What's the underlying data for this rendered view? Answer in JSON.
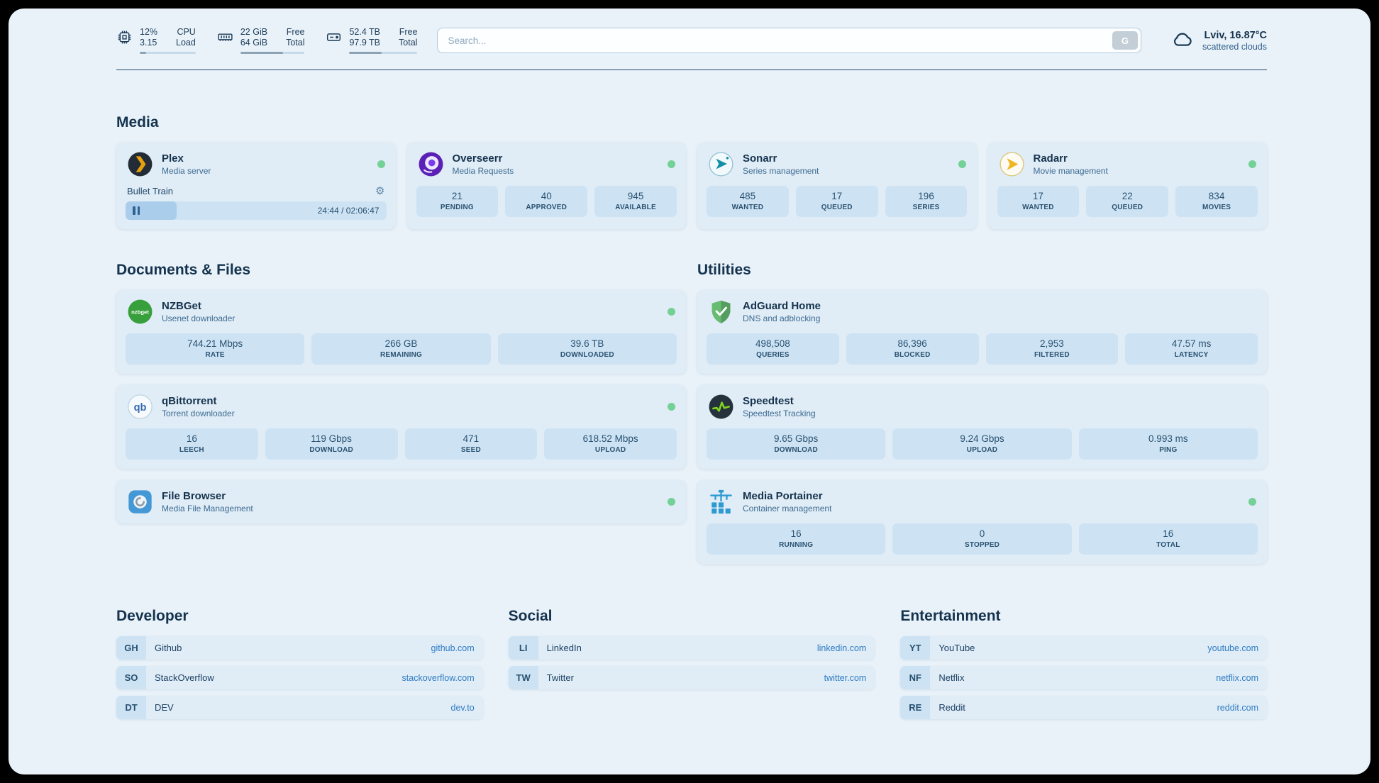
{
  "icons": {
    "gear": "⚙"
  },
  "topbar": {
    "resources": [
      {
        "value_top": "12%",
        "label_top": "CPU",
        "value_bottom": "3.15",
        "label_bottom": "Load",
        "percent": 12
      },
      {
        "value_top": "22 GiB",
        "label_top": "Free",
        "value_bottom": "64 GiB",
        "label_bottom": "Total",
        "percent": 66
      },
      {
        "value_top": "52.4 TB",
        "label_top": "Free",
        "value_bottom": "97.9 TB",
        "label_bottom": "Total",
        "percent": 47
      }
    ],
    "search": {
      "placeholder": "Search...",
      "button_label": "G"
    },
    "weather": {
      "location": "Lviv, 16.87°C",
      "condition": "scattered clouds"
    }
  },
  "media": {
    "heading": "Media",
    "plex": {
      "title": "Plex",
      "subtitle": "Media server",
      "now_playing": "Bullet Train",
      "time": "24:44 / 02:06:47",
      "progress_percent": 19.5
    },
    "overseerr": {
      "title": "Overseerr",
      "subtitle": "Media Requests",
      "stats": [
        {
          "value": "21",
          "label": "PENDING"
        },
        {
          "value": "40",
          "label": "APPROVED"
        },
        {
          "value": "945",
          "label": "AVAILABLE"
        }
      ]
    },
    "sonarr": {
      "title": "Sonarr",
      "subtitle": "Series management",
      "stats": [
        {
          "value": "485",
          "label": "WANTED"
        },
        {
          "value": "17",
          "label": "QUEUED"
        },
        {
          "value": "196",
          "label": "SERIES"
        }
      ]
    },
    "radarr": {
      "title": "Radarr",
      "subtitle": "Movie management",
      "stats": [
        {
          "value": "17",
          "label": "WANTED"
        },
        {
          "value": "22",
          "label": "QUEUED"
        },
        {
          "value": "834",
          "label": "MOVIES"
        }
      ]
    }
  },
  "documents": {
    "heading": "Documents & Files",
    "nzbget": {
      "title": "NZBGet",
      "subtitle": "Usenet downloader",
      "stats": [
        {
          "value": "744.21 Mbps",
          "label": "RATE"
        },
        {
          "value": "266 GB",
          "label": "REMAINING"
        },
        {
          "value": "39.6 TB",
          "label": "DOWNLOADED"
        }
      ]
    },
    "qbittorrent": {
      "title": "qBittorrent",
      "subtitle": "Torrent downloader",
      "stats": [
        {
          "value": "16",
          "label": "LEECH"
        },
        {
          "value": "119 Gbps",
          "label": "DOWNLOAD"
        },
        {
          "value": "471",
          "label": "SEED"
        },
        {
          "value": "618.52 Mbps",
          "label": "UPLOAD"
        }
      ]
    },
    "filebrowser": {
      "title": "File Browser",
      "subtitle": "Media File Management"
    }
  },
  "utilities": {
    "heading": "Utilities",
    "adguard": {
      "title": "AdGuard Home",
      "subtitle": "DNS and adblocking",
      "stats": [
        {
          "value": "498,508",
          "label": "QUERIES"
        },
        {
          "value": "86,396",
          "label": "BLOCKED"
        },
        {
          "value": "2,953",
          "label": "FILTERED"
        },
        {
          "value": "47.57 ms",
          "label": "LATENCY"
        }
      ]
    },
    "speedtest": {
      "title": "Speedtest",
      "subtitle": "Speedtest Tracking",
      "stats": [
        {
          "value": "9.65 Gbps",
          "label": "DOWNLOAD"
        },
        {
          "value": "9.24 Gbps",
          "label": "UPLOAD"
        },
        {
          "value": "0.993 ms",
          "label": "PING"
        }
      ]
    },
    "portainer": {
      "title": "Media Portainer",
      "subtitle": "Container management",
      "stats": [
        {
          "value": "16",
          "label": "RUNNING"
        },
        {
          "value": "0",
          "label": "STOPPED"
        },
        {
          "value": "16",
          "label": "TOTAL"
        }
      ]
    }
  },
  "bookmarks": {
    "developer": {
      "heading": "Developer",
      "items": [
        {
          "abbr": "GH",
          "name": "Github",
          "url": "github.com"
        },
        {
          "abbr": "SO",
          "name": "StackOverflow",
          "url": "stackoverflow.com"
        },
        {
          "abbr": "DT",
          "name": "DEV",
          "url": "dev.to"
        }
      ]
    },
    "social": {
      "heading": "Social",
      "items": [
        {
          "abbr": "LI",
          "name": "LinkedIn",
          "url": "linkedin.com"
        },
        {
          "abbr": "TW",
          "name": "Twitter",
          "url": "twitter.com"
        }
      ]
    },
    "entertainment": {
      "heading": "Entertainment",
      "items": [
        {
          "abbr": "YT",
          "name": "YouTube",
          "url": "youtube.com"
        },
        {
          "abbr": "NF",
          "name": "Netflix",
          "url": "netflix.com"
        },
        {
          "abbr": "RE",
          "name": "Reddit",
          "url": "reddit.com"
        }
      ]
    }
  }
}
